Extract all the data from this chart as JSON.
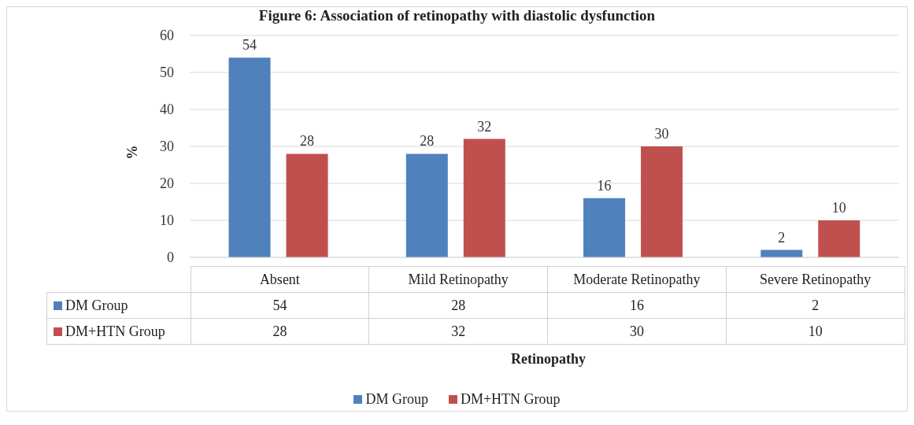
{
  "chart_data": {
    "type": "bar",
    "title": "Figure 6: Association of retinopathy with diastolic dysfunction",
    "xlabel": "Retinopathy",
    "ylabel": "%",
    "categories": [
      "Absent",
      "Mild Retinopathy",
      "Moderate Retinopathy",
      "Severe Retinopathy"
    ],
    "series": [
      {
        "name": "DM Group",
        "color": "#4f81bd",
        "values": [
          54,
          28,
          16,
          2
        ],
        "value_labels": [
          "54",
          "28",
          "16",
          "2"
        ]
      },
      {
        "name": "DM+HTN Group",
        "color": "#c0504d",
        "values": [
          28,
          32,
          30,
          10
        ],
        "value_labels": [
          "28",
          "32",
          "30",
          "10"
        ]
      }
    ],
    "ylim": [
      0,
      60
    ],
    "yticks": [
      0,
      10,
      20,
      30,
      40,
      50,
      60
    ],
    "grid": "y",
    "legend": "bottom"
  }
}
